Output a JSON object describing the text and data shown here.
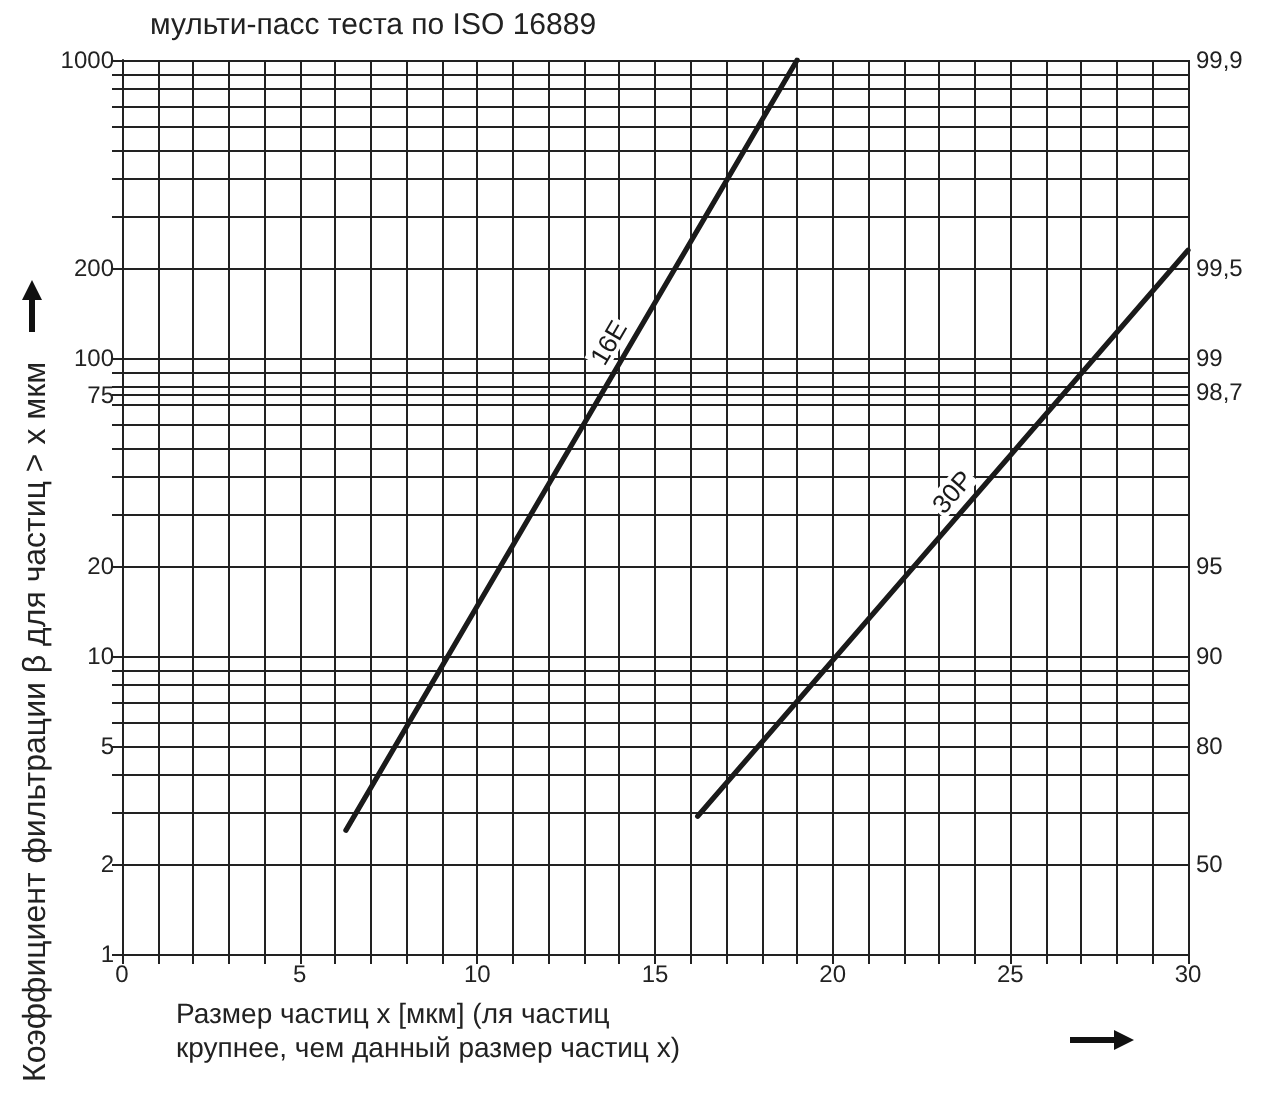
{
  "chart_data": {
    "type": "line",
    "title": "мульти-пасс теста по ISO 16889",
    "xlabel": "Размер частиц x [мкм] (ля частиц крупнее, чем данный размер частиц x)",
    "ylabel": "Коэффициент фильтрации β для частиц > x мкм",
    "series": [
      {
        "name": "16E",
        "color": "#1a1a1a",
        "x": [
          6.3,
          19
        ],
        "values": [
          2.6,
          1000
        ]
      },
      {
        "name": "30P",
        "color": "#1a1a1a",
        "x": [
          16.2,
          30
        ],
        "values": [
          2.9,
          230
        ]
      }
    ],
    "xlim": [
      0,
      30
    ],
    "xticks": [
      0,
      {
        "value": 1,
        "label": null
      },
      {
        "value": 2,
        "label": null
      },
      {
        "value": 3,
        "label": null
      },
      {
        "value": 4,
        "label": null
      },
      5,
      {
        "value": 6,
        "label": null
      },
      {
        "value": 7,
        "label": null
      },
      {
        "value": 8,
        "label": null
      },
      {
        "value": 9,
        "label": null
      },
      10,
      {
        "value": 11,
        "label": null
      },
      {
        "value": 12,
        "label": null
      },
      {
        "value": 13,
        "label": null
      },
      {
        "value": 14,
        "label": null
      },
      15,
      {
        "value": 16,
        "label": null
      },
      {
        "value": 17,
        "label": null
      },
      {
        "value": 18,
        "label": null
      },
      {
        "value": 19,
        "label": null
      },
      20,
      {
        "value": 21,
        "label": null
      },
      {
        "value": 22,
        "label": null
      },
      {
        "value": 23,
        "label": null
      },
      {
        "value": 24,
        "label": null
      },
      25,
      {
        "value": 26,
        "label": null
      },
      {
        "value": 27,
        "label": null
      },
      {
        "value": 28,
        "label": null
      },
      {
        "value": 29,
        "label": null
      },
      30
    ],
    "ylim": [
      1,
      1000
    ],
    "yticks": [
      1,
      2,
      {
        "value": 3,
        "label": null
      },
      {
        "value": 4,
        "label": null
      },
      5,
      {
        "value": 6,
        "label": null
      },
      {
        "value": 7,
        "label": null
      },
      {
        "value": 8,
        "label": null
      },
      {
        "value": 9,
        "label": null
      },
      10,
      20,
      {
        "value": 30,
        "label": null
      },
      {
        "value": 40,
        "label": null
      },
      {
        "value": 50,
        "label": null
      },
      {
        "value": 60,
        "label": null
      },
      {
        "value": 70,
        "label": null
      },
      75,
      {
        "value": 80,
        "label": null
      },
      {
        "value": 90,
        "label": null
      },
      100,
      200,
      {
        "value": 300,
        "label": null
      },
      {
        "value": 400,
        "label": null
      },
      {
        "value": 500,
        "label": null
      },
      {
        "value": 600,
        "label": null
      },
      {
        "value": 700,
        "label": null
      },
      {
        "value": 800,
        "label": null
      },
      {
        "value": 900,
        "label": null
      },
      1000
    ],
    "annotations": [
      "50",
      "80",
      "90",
      "95",
      "98,7",
      "99",
      "99,5",
      "99,9"
    ],
    "log": "y",
    "grid": true,
    "legend": false,
    "marker": "none",
    "line_style": "solid"
  }
}
